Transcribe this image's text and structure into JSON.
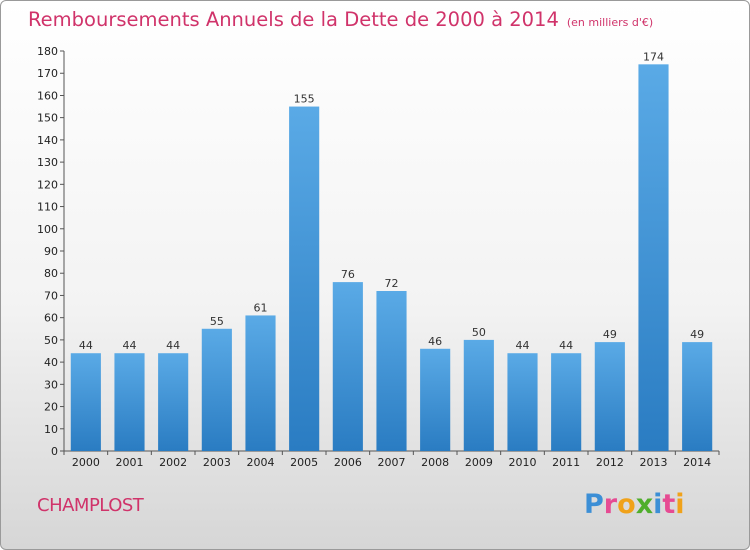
{
  "header": {
    "title": "Remboursements Annuels de la Dette de 2000 à 2014",
    "unit": "(en milliers d'€)"
  },
  "commune": "CHAMPLOST",
  "logo": {
    "letters": [
      "P",
      "r",
      "o",
      "x",
      "i",
      "t",
      "i"
    ],
    "colors": [
      "#3c8fd6",
      "#e64b93",
      "#f0a21a",
      "#4fae2c",
      "#3c8fd6",
      "#e64b93",
      "#f0a21a"
    ]
  },
  "chart_data": {
    "type": "bar",
    "categories": [
      "2000",
      "2001",
      "2002",
      "2003",
      "2004",
      "2005",
      "2006",
      "2007",
      "2008",
      "2009",
      "2010",
      "2011",
      "2012",
      "2013",
      "2014"
    ],
    "values": [
      44,
      44,
      44,
      55,
      61,
      155,
      76,
      72,
      46,
      50,
      44,
      44,
      49,
      174,
      49
    ],
    "ylim": [
      0,
      180
    ],
    "yticks": [
      0,
      10,
      20,
      30,
      40,
      50,
      60,
      70,
      80,
      90,
      100,
      110,
      120,
      130,
      140,
      150,
      160,
      170,
      180
    ],
    "grid": false,
    "bar_color_top": "#5aaae6",
    "bar_color_bottom": "#2a7cc2"
  }
}
